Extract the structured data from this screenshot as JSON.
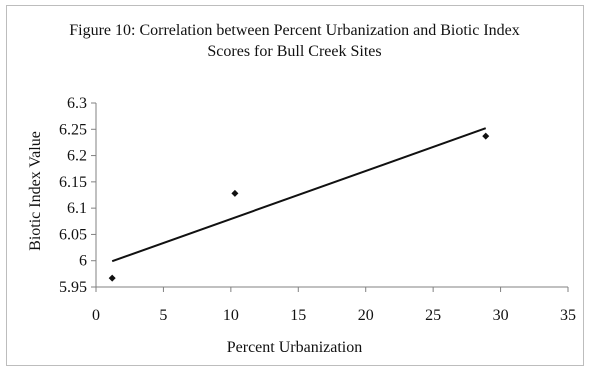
{
  "chart_data": {
    "type": "scatter",
    "title_lines": [
      "Figure 10: Correlation between Percent Urbanization and Biotic Index",
      "Scores for Bull Creek Sites"
    ],
    "xlabel": "Percent Urbanization",
    "ylabel": "Biotic Index Value",
    "xlim": [
      0,
      35
    ],
    "ylim": [
      5.95,
      6.3
    ],
    "xticks": [
      "0",
      "5",
      "10",
      "15",
      "20",
      "25",
      "30",
      "35"
    ],
    "yticks": [
      "5.95",
      "6",
      "6.05",
      "6.1",
      "6.15",
      "6.2",
      "6.25",
      "6.3"
    ],
    "points": [
      {
        "x": 1.2,
        "y": 5.967
      },
      {
        "x": 10.3,
        "y": 6.128
      },
      {
        "x": 28.9,
        "y": 6.237
      }
    ],
    "trendline": {
      "x": [
        1.2,
        28.9
      ],
      "y": [
        5.999,
        6.252
      ]
    },
    "grid": false,
    "legend": "none",
    "colors": {
      "marker": "#111111",
      "line": "#111111",
      "axis": "#808080"
    }
  }
}
